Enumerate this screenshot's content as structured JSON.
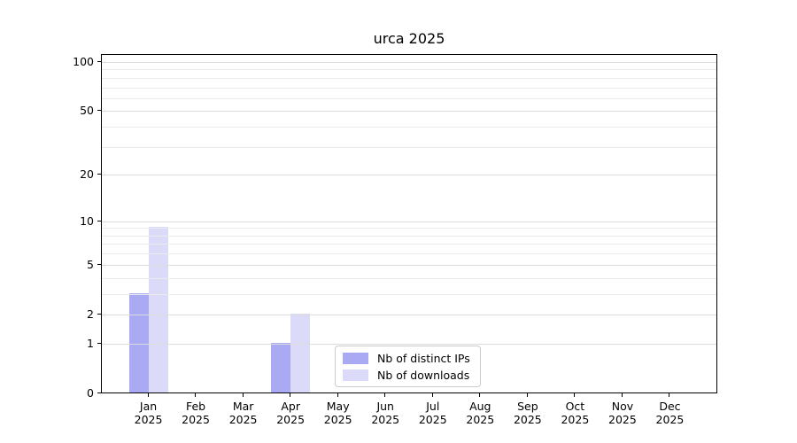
{
  "title": "urca 2025",
  "chart_data": {
    "type": "bar",
    "title": "urca 2025",
    "categories": [
      "Jan",
      "Feb",
      "Mar",
      "Apr",
      "May",
      "Jun",
      "Jul",
      "Aug",
      "Sep",
      "Oct",
      "Nov",
      "Dec"
    ],
    "x_year_label": "2025",
    "series": [
      {
        "name": "Nb of distinct IPs",
        "color": "#a9a9f4",
        "values": [
          3,
          0,
          0,
          1,
          0,
          0,
          0,
          0,
          0,
          0,
          0,
          0
        ]
      },
      {
        "name": "Nb of downloads",
        "color": "#dbdbf9",
        "values": [
          9,
          0,
          0,
          2,
          0,
          0,
          0,
          0,
          0,
          0,
          0,
          0
        ]
      }
    ],
    "yscale": "log1p",
    "ylim": [
      0,
      100
    ],
    "yticks": [
      0,
      1,
      2,
      5,
      10,
      20,
      50,
      100
    ],
    "ytick_labels": [
      "0",
      "1",
      "2",
      "5",
      "10",
      "20",
      "50",
      "100"
    ],
    "minor_yticks": [
      3,
      4,
      6,
      7,
      8,
      9,
      30,
      40,
      60,
      70,
      80,
      90
    ],
    "grid": true,
    "legend_position": "inside-bottom-center"
  },
  "colors": {
    "bar_distinct_ips": "#a9a9f4",
    "bar_downloads": "#dbdbf9",
    "grid_major": "#dcdcdc",
    "grid_minor": "#ebebeb",
    "axis": "#000000",
    "legend_border": "#cccccc",
    "background": "#ffffff"
  }
}
